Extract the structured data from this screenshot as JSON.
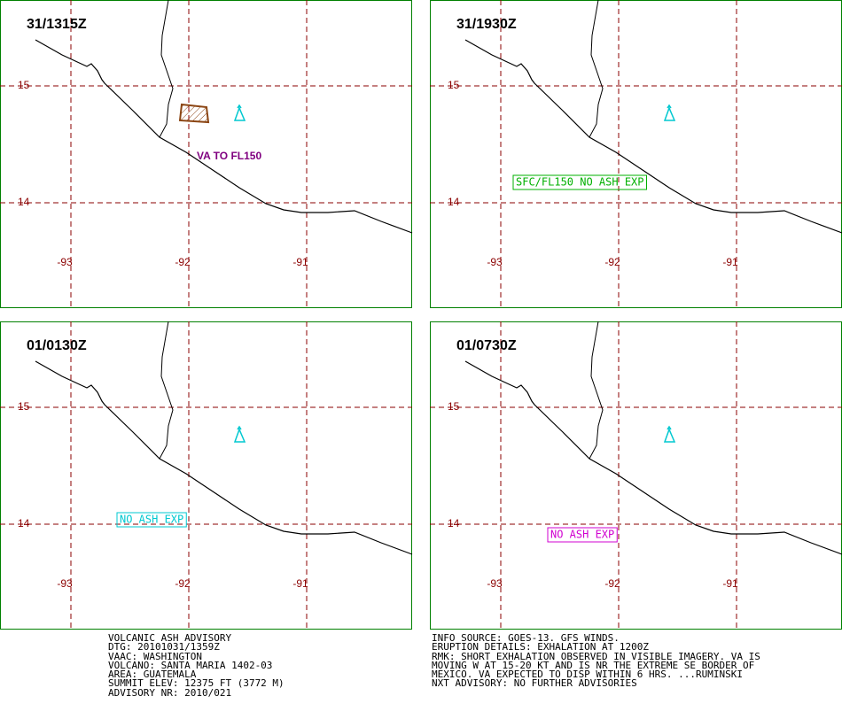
{
  "panels": [
    {
      "time": "31/1315Z",
      "lat_labels": [
        "15",
        "14"
      ],
      "lon_labels": [
        "-93",
        "-92",
        "-91"
      ],
      "annotation": {
        "text": "VA TO FL150",
        "color": "#800080",
        "boxed": false
      },
      "ash_area": true
    },
    {
      "time": "31/1930Z",
      "lat_labels": [
        "15",
        "14"
      ],
      "lon_labels": [
        "-93",
        "-92",
        "-91"
      ],
      "annotation": {
        "text": "SFC/FL150 NO ASH EXP",
        "color": "#00b000",
        "boxed": true
      },
      "ash_area": false
    },
    {
      "time": "01/0130Z",
      "lat_labels": [
        "15",
        "14"
      ],
      "lon_labels": [
        "-93",
        "-92",
        "-91"
      ],
      "annotation": {
        "text": "NO ASH EXP",
        "color": "#00c8d0",
        "boxed": true
      },
      "ash_area": false
    },
    {
      "time": "01/0730Z",
      "lat_labels": [
        "15",
        "14"
      ],
      "lon_labels": [
        "-93",
        "-92",
        "-91"
      ],
      "annotation": {
        "text": "NO ASH EXP",
        "color": "#d000d0",
        "boxed": true
      },
      "ash_area": false
    }
  ],
  "advisory_left": [
    "VOLCANIC ASH ADVISORY",
    "DTG: 20101031/1359Z",
    "VAAC: WASHINGTON",
    "VOLCANO: SANTA MARIA 1402-03",
    "AREA: GUATEMALA",
    "SUMMIT ELEV: 12375 FT (3772 M)",
    "ADVISORY NR: 2010/021"
  ],
  "advisory_right": [
    "INFO SOURCE: GOES-13. GFS WINDS.",
    "ERUPTION DETAILS: EXHALATION AT 1200Z",
    "RMK: SHORT EXHALATION OBSERVED IN VISIBLE IMAGERY. VA IS",
    "MOVING W AT 15-20 KT AND IS NR THE EXTREME SE BORDER OF",
    "MEXICO. VA EXPECTED TO DISP WITHIN 6 HRS. ...RUMINSKI",
    "NXT ADVISORY: NO FURTHER ADVISORIES"
  ]
}
